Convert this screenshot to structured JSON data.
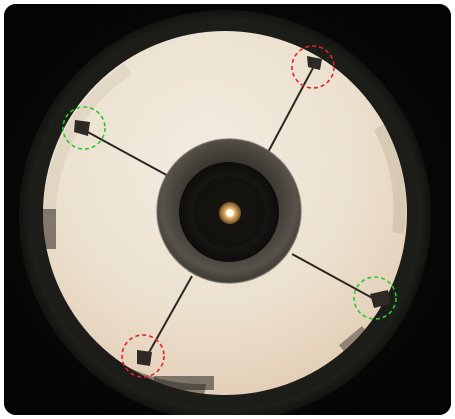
{
  "photo": {
    "subject": "telescope-tube-front-view",
    "colors": {
      "background": "#050605",
      "tube_rim": "#2a2a28",
      "aperture_light": "#efe6d4",
      "aperture_warm": "#e6d2bc",
      "secondary_holder": "#3a3630",
      "spider_vane": "#2b2824",
      "highlight_marker": "#2ec82e",
      "alert_marker": "#e02424"
    },
    "markers": [
      {
        "name": "vane-mount-top-right",
        "color": "red"
      },
      {
        "name": "vane-mount-left",
        "color": "green"
      },
      {
        "name": "vane-mount-right",
        "color": "green"
      },
      {
        "name": "vane-mount-bottom-left",
        "color": "red"
      }
    ]
  }
}
